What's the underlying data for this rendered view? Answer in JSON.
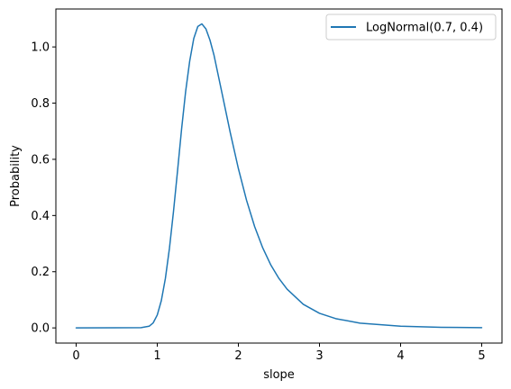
{
  "chart_data": {
    "type": "line",
    "xlabel": "slope",
    "ylabel": "Probability",
    "xlim": [
      -0.25,
      5.25
    ],
    "ylim": [
      -0.054,
      1.135
    ],
    "xticks": [
      0,
      1,
      2,
      3,
      4,
      5
    ],
    "yticks": [
      0.0,
      0.2,
      0.4,
      0.6,
      0.8,
      1.0
    ],
    "xtick_labels": [
      "0",
      "1",
      "2",
      "3",
      "4",
      "5"
    ],
    "ytick_labels": [
      "0.0",
      "0.2",
      "0.4",
      "0.6",
      "0.8",
      "1.0"
    ],
    "grid": false,
    "legend_position": "top-right",
    "series": [
      {
        "name": "LogNormal(0.7, 0.4)",
        "color": "#1f77b4",
        "x": [
          0.0,
          0.8,
          0.9,
          0.95,
          1.0,
          1.05,
          1.1,
          1.15,
          1.2,
          1.25,
          1.3,
          1.35,
          1.4,
          1.45,
          1.5,
          1.55,
          1.6,
          1.65,
          1.7,
          1.8,
          1.9,
          2.0,
          2.1,
          2.2,
          2.3,
          2.4,
          2.5,
          2.6,
          2.8,
          3.0,
          3.2,
          3.5,
          4.0,
          4.5,
          5.0
        ],
        "y": [
          0.0,
          0.001,
          0.006,
          0.018,
          0.046,
          0.097,
          0.176,
          0.283,
          0.414,
          0.559,
          0.708,
          0.842,
          0.95,
          1.03,
          1.073,
          1.082,
          1.064,
          1.024,
          0.97,
          0.833,
          0.695,
          0.567,
          0.455,
          0.361,
          0.285,
          0.224,
          0.176,
          0.138,
          0.084,
          0.052,
          0.033,
          0.017,
          0.006,
          0.002,
          0.001
        ]
      }
    ]
  }
}
